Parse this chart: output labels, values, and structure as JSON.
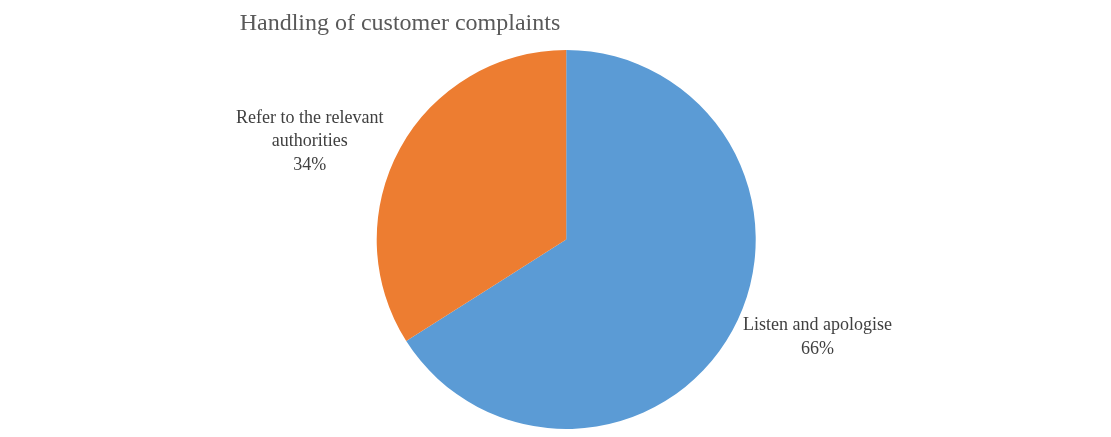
{
  "chart_data": {
    "type": "pie",
    "title": "Handling of customer complaints",
    "categories": [
      "Listen and apologise",
      "Refer to the relevant authorities"
    ],
    "values": [
      66,
      34
    ],
    "value_labels": [
      "66%",
      "34%"
    ],
    "colors": [
      "#5b9bd5",
      "#ed7d31"
    ],
    "legend": false
  }
}
